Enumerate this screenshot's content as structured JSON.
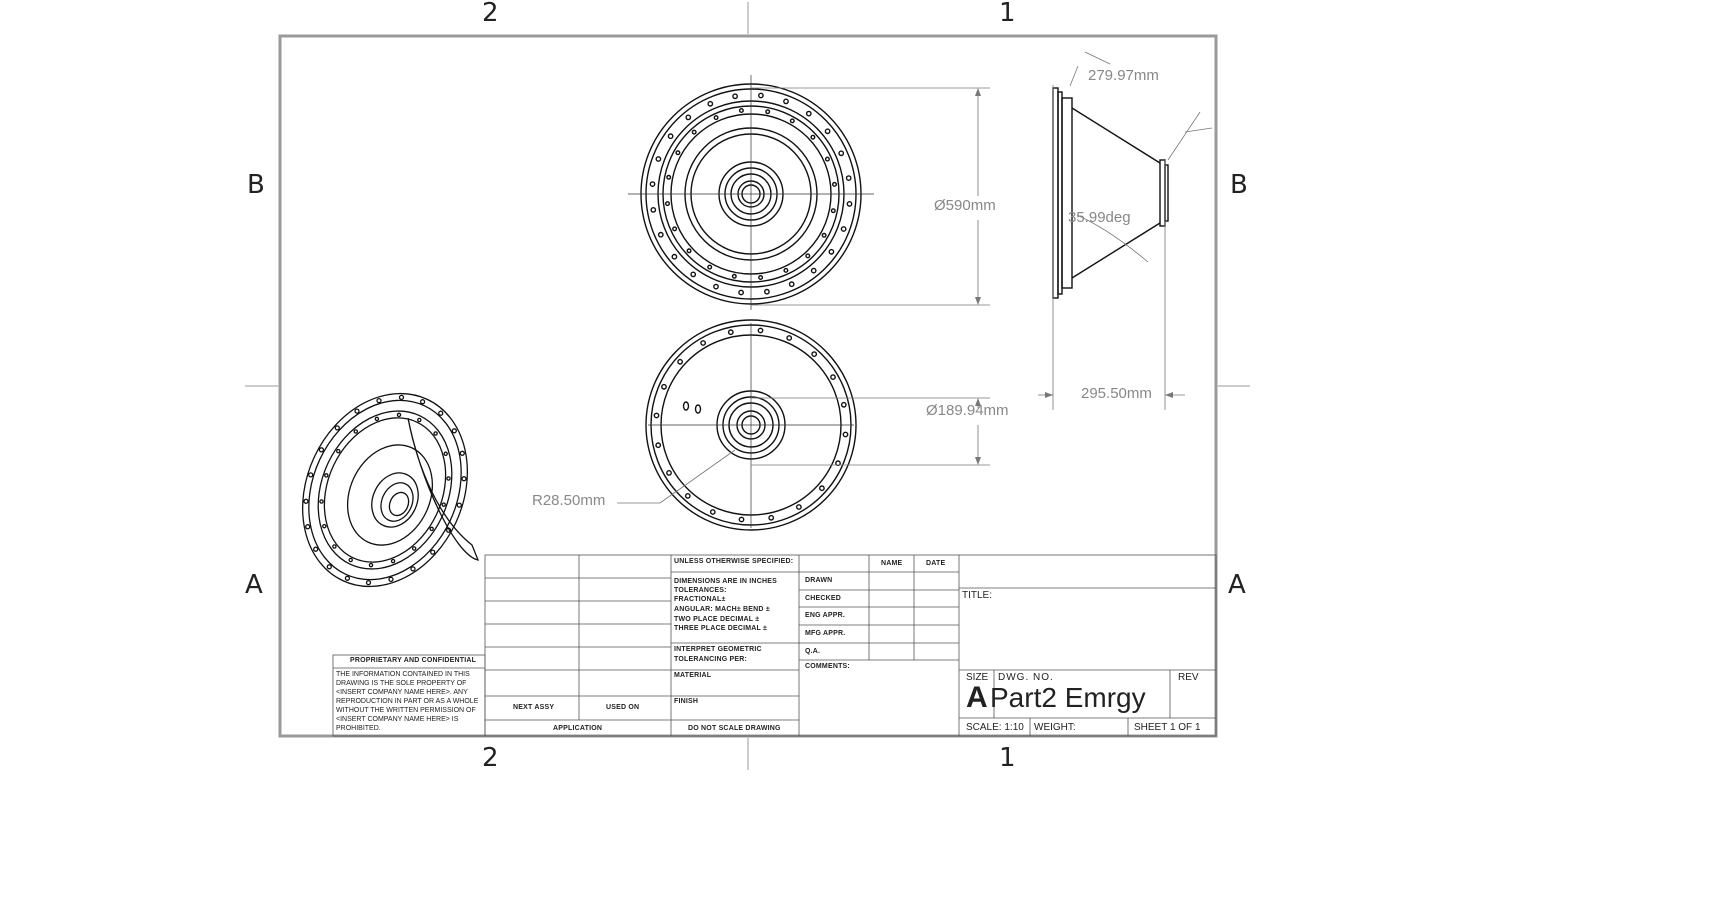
{
  "zones": {
    "top_left": "2",
    "top_right": "1",
    "bottom_left": "2",
    "bottom_right": "1",
    "left_upper": "B",
    "left_lower": "A",
    "right_upper": "B",
    "right_lower": "A"
  },
  "dimensions": {
    "diameter_outer": "Ø590mm",
    "diameter_inner": "Ø189.94mm",
    "radius": "R28.50mm",
    "length_top": "279.97mm",
    "angle": "35.99deg",
    "width_bottom": "295.50mm"
  },
  "tolerance_block": {
    "unless": "UNLESS OTHERWISE SPECIFIED:",
    "dims": "DIMENSIONS ARE IN INCHES",
    "tolerances": "TOLERANCES:",
    "fractional": "FRACTIONAL±",
    "angular": "ANGULAR: MACH±    BEND ±",
    "two_place": "TWO PLACE DECIMAL    ±",
    "three_place": "THREE PLACE DECIMAL    ±",
    "interpret": "INTERPRET GEOMETRIC",
    "tolerancing": "TOLERANCING PER:",
    "material": "MATERIAL",
    "finish": "FINISH",
    "do_not_scale": "DO NOT SCALE DRAWING"
  },
  "approval_block": {
    "name_header": "NAME",
    "date_header": "DATE",
    "drawn": "DRAWN",
    "checked": "CHECKED",
    "eng_appr": "ENG APPR.",
    "mfg_appr": "MFG APPR.",
    "qa": "Q.A.",
    "comments": "COMMENTS:"
  },
  "application_block": {
    "next_assy": "NEXT ASSY",
    "used_on": "USED ON",
    "application": "APPLICATION"
  },
  "proprietary": {
    "heading": "PROPRIETARY AND CONFIDENTIAL",
    "body": "THE INFORMATION CONTAINED IN THIS\nDRAWING IS THE SOLE PROPERTY OF\n<INSERT COMPANY NAME HERE>. ANY\nREPRODUCTION IN PART OR AS A WHOLE\nWITHOUT THE WRITTEN PERMISSION OF\n<INSERT COMPANY NAME HERE> IS\nPROHIBITED."
  },
  "title_block": {
    "title_label": "TITLE:",
    "size_label": "SIZE",
    "size_value": "A",
    "dwg_no_label": "DWG. NO.",
    "dwg_no_value": "Part2 Emrgy",
    "rev_label": "REV",
    "scale": "SCALE: 1:10",
    "weight": "WEIGHT:",
    "sheet": "SHEET 1 OF 1"
  }
}
